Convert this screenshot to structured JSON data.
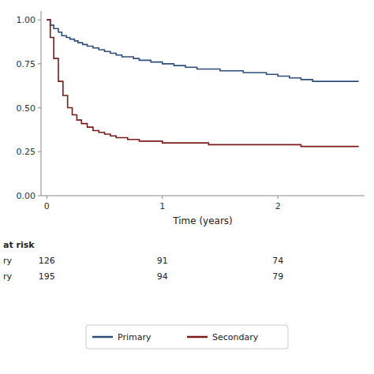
{
  "chart_data": {
    "type": "step",
    "xlabel": "Time (years)",
    "xlim": [
      -0.05,
      2.75
    ],
    "ylim": [
      0.0,
      1.05
    ],
    "xticks": [
      0,
      1,
      2
    ],
    "yticks": [
      {
        "value": 0.0,
        "label": "0.00"
      },
      {
        "value": 0.25,
        "label": "0.25"
      },
      {
        "value": 0.5,
        "label": "0.50"
      },
      {
        "value": 0.75,
        "label": "0.75"
      },
      {
        "value": 1.0,
        "label": "1.00"
      }
    ],
    "grid": false,
    "legend": "bottom",
    "series": [
      {
        "name": "Primary",
        "color": "#2e4d7b",
        "x": [
          0.0,
          0.03,
          0.06,
          0.1,
          0.13,
          0.17,
          0.2,
          0.24,
          0.27,
          0.31,
          0.35,
          0.4,
          0.45,
          0.5,
          0.55,
          0.6,
          0.65,
          0.7,
          0.75,
          0.8,
          0.9,
          1.0,
          1.1,
          1.2,
          1.3,
          1.4,
          1.5,
          1.6,
          1.7,
          1.8,
          1.9,
          2.0,
          2.1,
          2.2,
          2.3,
          2.4,
          2.5,
          2.6,
          2.7
        ],
        "values": [
          1.0,
          0.97,
          0.95,
          0.93,
          0.91,
          0.9,
          0.89,
          0.88,
          0.87,
          0.86,
          0.85,
          0.84,
          0.83,
          0.82,
          0.81,
          0.8,
          0.79,
          0.79,
          0.78,
          0.77,
          0.76,
          0.75,
          0.74,
          0.73,
          0.72,
          0.72,
          0.71,
          0.71,
          0.7,
          0.7,
          0.69,
          0.68,
          0.67,
          0.66,
          0.65,
          0.65,
          0.65,
          0.65,
          0.65
        ]
      },
      {
        "name": "Secondary",
        "color": "#7a1a1a",
        "x": [
          0.0,
          0.03,
          0.06,
          0.1,
          0.14,
          0.18,
          0.22,
          0.26,
          0.3,
          0.35,
          0.4,
          0.45,
          0.5,
          0.55,
          0.6,
          0.65,
          0.7,
          0.75,
          0.8,
          0.9,
          1.0,
          1.1,
          1.2,
          1.3,
          1.4,
          1.5,
          1.6,
          1.8,
          2.0,
          2.2,
          2.4,
          2.6,
          2.7
        ],
        "values": [
          1.0,
          0.9,
          0.78,
          0.65,
          0.57,
          0.5,
          0.46,
          0.43,
          0.41,
          0.39,
          0.37,
          0.36,
          0.35,
          0.34,
          0.33,
          0.33,
          0.32,
          0.32,
          0.31,
          0.31,
          0.3,
          0.3,
          0.3,
          0.3,
          0.29,
          0.29,
          0.29,
          0.29,
          0.29,
          0.28,
          0.28,
          0.28,
          0.28
        ]
      }
    ],
    "risk_table": {
      "label": "at risk",
      "times": [
        0,
        1,
        2
      ],
      "rows": [
        {
          "label": "ry",
          "values": [
            126,
            91,
            74
          ]
        },
        {
          "label": "ry",
          "values": [
            195,
            94,
            79
          ]
        }
      ]
    }
  }
}
